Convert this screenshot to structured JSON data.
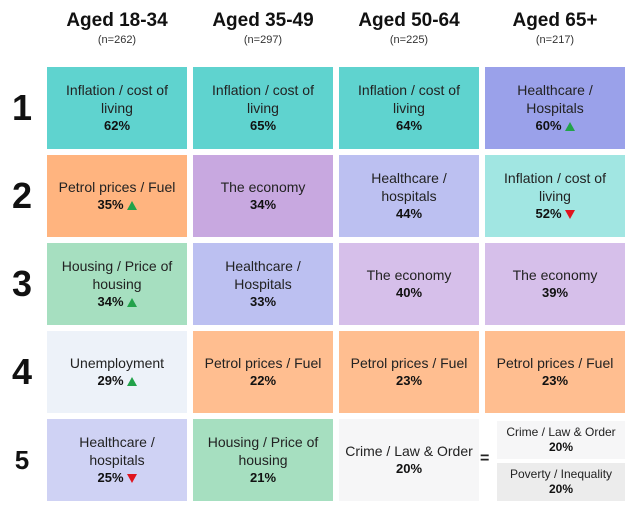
{
  "chart_data": {
    "type": "table",
    "columns": [
      {
        "title": "Aged 18-34",
        "n": "(n=262)"
      },
      {
        "title": "Aged 35-49",
        "n": "(n=297)"
      },
      {
        "title": "Aged 50-64",
        "n": "(n=225)"
      },
      {
        "title": "Aged 65+",
        "n": "(n=217)"
      }
    ],
    "ranks": [
      "1",
      "2",
      "3",
      "4",
      "5"
    ],
    "cells": [
      [
        {
          "label": "Inflation / cost of living",
          "value": "62%",
          "trend": "",
          "color": "#5fd3cf"
        },
        {
          "label": "Petrol prices / Fuel",
          "value": "35%",
          "trend": "up",
          "color": "#ffb47f"
        },
        {
          "label": "Housing / Price of housing",
          "value": "34%",
          "trend": "up",
          "color": "#a6dfc0"
        },
        {
          "label": "Unemployment",
          "value": "29%",
          "trend": "up",
          "color": "#edf2f9"
        },
        {
          "label": "Healthcare / hospitals",
          "value": "25%",
          "trend": "down",
          "color": "#cfd2f4"
        }
      ],
      [
        {
          "label": "Inflation / cost of living",
          "value": "65%",
          "trend": "",
          "color": "#5fd3cf"
        },
        {
          "label": "The economy",
          "value": "34%",
          "trend": "",
          "color": "#c8a8e0"
        },
        {
          "label": "Healthcare / Hospitals",
          "value": "33%",
          "trend": "",
          "color": "#bcc0f1"
        },
        {
          "label": "Petrol prices / Fuel",
          "value": "22%",
          "trend": "",
          "color": "#ffbe90"
        },
        {
          "label": "Housing / Price of housing",
          "value": "21%",
          "trend": "",
          "color": "#a6dfc0"
        }
      ],
      [
        {
          "label": "Inflation / cost of living",
          "value": "64%",
          "trend": "",
          "color": "#5fd3cf"
        },
        {
          "label": "Healthcare / hospitals",
          "value": "44%",
          "trend": "",
          "color": "#bcc0f1"
        },
        {
          "label": "The economy",
          "value": "40%",
          "trend": "",
          "color": "#d6bfea"
        },
        {
          "label": "Petrol prices / Fuel",
          "value": "23%",
          "trend": "",
          "color": "#ffbe90"
        },
        {
          "label": "Crime / Law & Order",
          "value": "20%",
          "trend": "",
          "color": "#f6f6f7"
        }
      ],
      [
        {
          "label": "Healthcare / Hospitals",
          "value": "60%",
          "trend": "up",
          "color": "#9aa1ea"
        },
        {
          "label": "Inflation / cost of living",
          "value": "52%",
          "trend": "down",
          "color": "#a1e6e2"
        },
        {
          "label": "The economy",
          "value": "39%",
          "trend": "",
          "color": "#d6bfea"
        },
        {
          "label": "Petrol prices / Fuel",
          "value": "23%",
          "trend": "",
          "color": "#ffbe90"
        },
        {
          "split": true,
          "equal_sign": "=",
          "items": [
            {
              "label": "Crime / Law & Order",
              "value": "20%",
              "color": "#f6f6f7"
            },
            {
              "label": "Poverty / Inequality",
              "value": "20%",
              "color": "#ececec"
            }
          ]
        }
      ]
    ]
  }
}
